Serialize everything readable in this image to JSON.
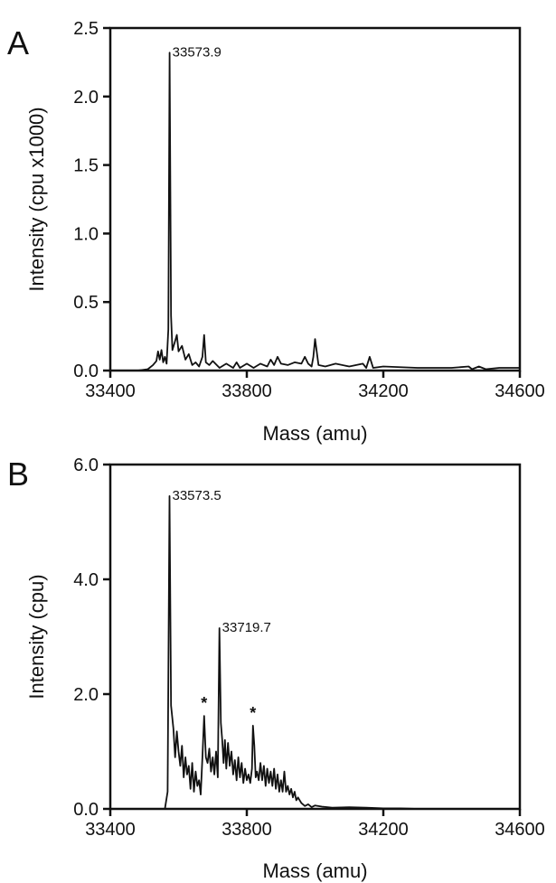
{
  "chart_data": [
    {
      "type": "line",
      "panel_label": "A",
      "xlabel": "Mass (amu)",
      "ylabel": "Intensity (cpu x1000)",
      "xlim": [
        33400,
        34600
      ],
      "ylim": [
        0,
        2.5
      ],
      "x_ticks": [
        "33400",
        "33800",
        "34200",
        "34600"
      ],
      "y_ticks": [
        "0.0",
        "0.5",
        "1.0",
        "1.5",
        "2.0",
        "2.5"
      ],
      "grid": false,
      "annotations": [
        {
          "text": "33573.9",
          "x": 33573.9,
          "y": 2.32
        }
      ],
      "series": [
        {
          "x": [
            33400,
            33480,
            33510,
            33525,
            33535,
            33540,
            33545,
            33550,
            33555,
            33560,
            33565,
            33570,
            33573.9,
            33578,
            33582,
            33588,
            33595,
            33600,
            33610,
            33620,
            33630,
            33640,
            33650,
            33660,
            33670,
            33675,
            33680,
            33690,
            33700,
            33720,
            33740,
            33760,
            33770,
            33780,
            33800,
            33820,
            33840,
            33860,
            33870,
            33880,
            33890,
            33900,
            33920,
            33940,
            33960,
            33970,
            33980,
            33990,
            33995,
            34000,
            34010,
            34030,
            34060,
            34100,
            34140,
            34150,
            34160,
            34170,
            34200,
            34300,
            34400,
            34450,
            34460,
            34480,
            34500,
            34540,
            34600
          ],
          "values": [
            0.0,
            0.0,
            0.01,
            0.04,
            0.07,
            0.14,
            0.08,
            0.15,
            0.06,
            0.1,
            0.05,
            0.3,
            2.32,
            0.4,
            0.15,
            0.2,
            0.26,
            0.14,
            0.18,
            0.08,
            0.12,
            0.04,
            0.06,
            0.03,
            0.1,
            0.26,
            0.06,
            0.04,
            0.07,
            0.02,
            0.05,
            0.02,
            0.06,
            0.02,
            0.05,
            0.02,
            0.05,
            0.03,
            0.08,
            0.04,
            0.1,
            0.05,
            0.04,
            0.06,
            0.05,
            0.1,
            0.05,
            0.03,
            0.1,
            0.23,
            0.04,
            0.03,
            0.05,
            0.03,
            0.05,
            0.02,
            0.1,
            0.02,
            0.03,
            0.02,
            0.02,
            0.03,
            0.01,
            0.03,
            0.01,
            0.02,
            0.02
          ]
        }
      ]
    },
    {
      "type": "line",
      "panel_label": "B",
      "xlabel": "Mass (amu)",
      "ylabel": "Intensity (cpu)",
      "xlim": [
        33400,
        34600
      ],
      "ylim": [
        0,
        6.0
      ],
      "x_ticks": [
        "33400",
        "33800",
        "34200",
        "34600"
      ],
      "y_ticks": [
        "0.0",
        "2.0",
        "4.0",
        "6.0"
      ],
      "grid": false,
      "annotations": [
        {
          "text": "33573.5",
          "x": 33573.5,
          "y": 5.45
        },
        {
          "text": "33719.7",
          "x": 33719.7,
          "y": 3.15
        },
        {
          "text": "*",
          "x": 33675,
          "y": 1.62
        },
        {
          "text": "*",
          "x": 33818,
          "y": 1.45
        }
      ],
      "series": [
        {
          "x": [
            33400,
            33560,
            33568,
            33573.5,
            33578,
            33585,
            33590,
            33595,
            33600,
            33605,
            33610,
            33615,
            33620,
            33625,
            33630,
            33635,
            33640,
            33645,
            33650,
            33655,
            33660,
            33665,
            33670,
            33675,
            33680,
            33685,
            33690,
            33695,
            33700,
            33705,
            33710,
            33715,
            33719.7,
            33724,
            33728,
            33732,
            33736,
            33740,
            33745,
            33750,
            33755,
            33760,
            33765,
            33770,
            33775,
            33780,
            33785,
            33790,
            33795,
            33800,
            33805,
            33810,
            33815,
            33818,
            33822,
            33826,
            33830,
            33835,
            33840,
            33845,
            33850,
            33855,
            33860,
            33865,
            33870,
            33875,
            33880,
            33885,
            33890,
            33895,
            33900,
            33905,
            33910,
            33915,
            33920,
            33925,
            33930,
            33935,
            33940,
            33945,
            33950,
            33960,
            33970,
            33980,
            33990,
            34000,
            34020,
            34050,
            34100,
            34150,
            34200,
            34250,
            34300,
            34600
          ],
          "values": [
            0.0,
            0.0,
            0.3,
            5.45,
            1.8,
            1.4,
            0.9,
            1.35,
            1.0,
            0.75,
            1.1,
            0.55,
            0.9,
            0.6,
            0.75,
            0.35,
            0.8,
            0.3,
            0.65,
            0.4,
            0.5,
            0.25,
            0.9,
            1.62,
            0.9,
            0.8,
            1.05,
            0.65,
            0.9,
            0.6,
            1.0,
            0.55,
            3.15,
            1.5,
            1.2,
            0.8,
            1.2,
            0.7,
            1.15,
            0.75,
            1.0,
            0.6,
            0.85,
            0.5,
            0.9,
            0.55,
            0.8,
            0.45,
            0.7,
            0.5,
            0.6,
            0.45,
            0.7,
            1.45,
            1.1,
            0.55,
            0.65,
            0.5,
            0.8,
            0.5,
            0.75,
            0.4,
            0.7,
            0.45,
            0.65,
            0.4,
            0.7,
            0.35,
            0.6,
            0.3,
            0.5,
            0.3,
            0.65,
            0.3,
            0.4,
            0.25,
            0.35,
            0.2,
            0.3,
            0.15,
            0.2,
            0.1,
            0.05,
            0.08,
            0.03,
            0.06,
            0.04,
            0.02,
            0.03,
            0.02,
            0.01,
            0.01,
            0.0,
            0.0
          ]
        }
      ]
    }
  ]
}
